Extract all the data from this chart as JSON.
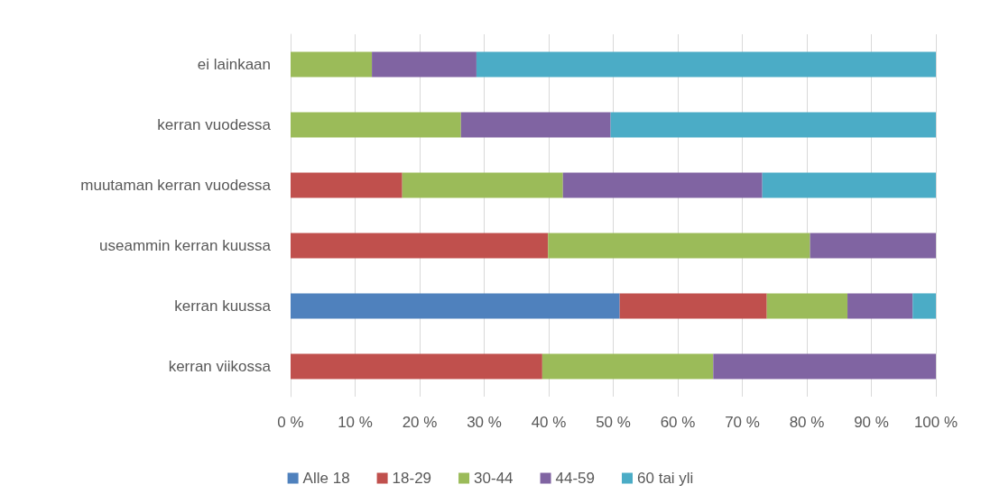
{
  "chart_data": {
    "type": "bar",
    "orientation": "horizontal",
    "stacked": true,
    "categories": [
      "ei lainkaan",
      "kerran vuodessa",
      "muutaman kerran vuodessa",
      "useammin kerran kuussa",
      "kerran kuussa",
      "kerran viikossa"
    ],
    "series": [
      {
        "name": "Alle 18",
        "color": "#4f81bd",
        "values": [
          null,
          null,
          null,
          null,
          51.0,
          null
        ]
      },
      {
        "name": "18-29",
        "color": "#c0504d",
        "values": [
          null,
          null,
          17.3,
          39.9,
          22.8,
          39.0
        ]
      },
      {
        "name": "30-44",
        "color": "#9bbb59",
        "values": [
          12.6,
          26.4,
          24.9,
          40.6,
          12.5,
          26.5
        ]
      },
      {
        "name": "44-59",
        "color": "#8064a2",
        "values": [
          16.2,
          23.2,
          30.9,
          19.5,
          10.1,
          34.5
        ]
      },
      {
        "name": "60 tai yli",
        "color": "#4bacc6",
        "values": [
          71.2,
          50.4,
          26.9,
          null,
          3.6,
          null
        ]
      }
    ],
    "xlim": [
      0,
      100
    ],
    "xticks": [
      {
        "value": 0,
        "label": "0 %"
      },
      {
        "value": 10,
        "label": "10 %"
      },
      {
        "value": 20,
        "label": "20 %"
      },
      {
        "value": 30,
        "label": "30 %"
      },
      {
        "value": 40,
        "label": "40 %"
      },
      {
        "value": 50,
        "label": "50 %"
      },
      {
        "value": 60,
        "label": "60 %"
      },
      {
        "value": 70,
        "label": "70 %"
      },
      {
        "value": 80,
        "label": "80 %"
      },
      {
        "value": 90,
        "label": "90 %"
      },
      {
        "value": 100,
        "label": "100 %"
      }
    ],
    "grid": "x",
    "legend": "bottom"
  }
}
